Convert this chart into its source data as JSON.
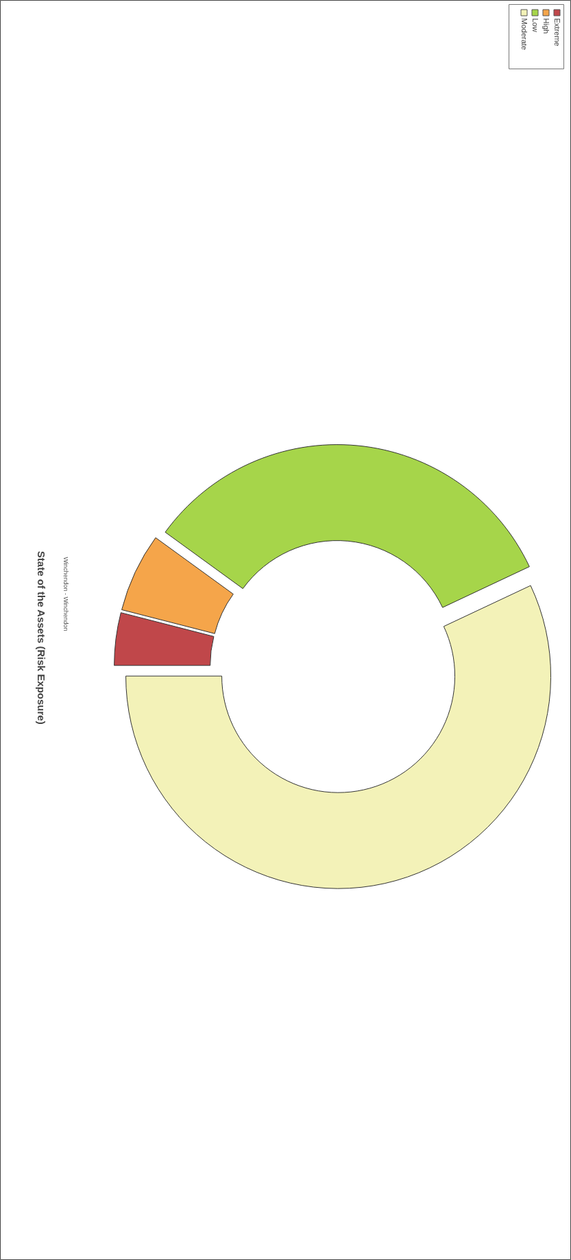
{
  "chart_data": {
    "type": "donut",
    "title": "State of the Assets (Risk Exposure)",
    "subtitle": "Winchendon - Winchendon",
    "categories": [
      "Extreme",
      "High",
      "Low",
      "Moderate"
    ],
    "values": [
      4,
      6,
      33,
      57
    ],
    "colors": [
      "#c0474a",
      "#f5a54a",
      "#a6d54a",
      "#f3f2b8"
    ],
    "legend": "top right"
  }
}
